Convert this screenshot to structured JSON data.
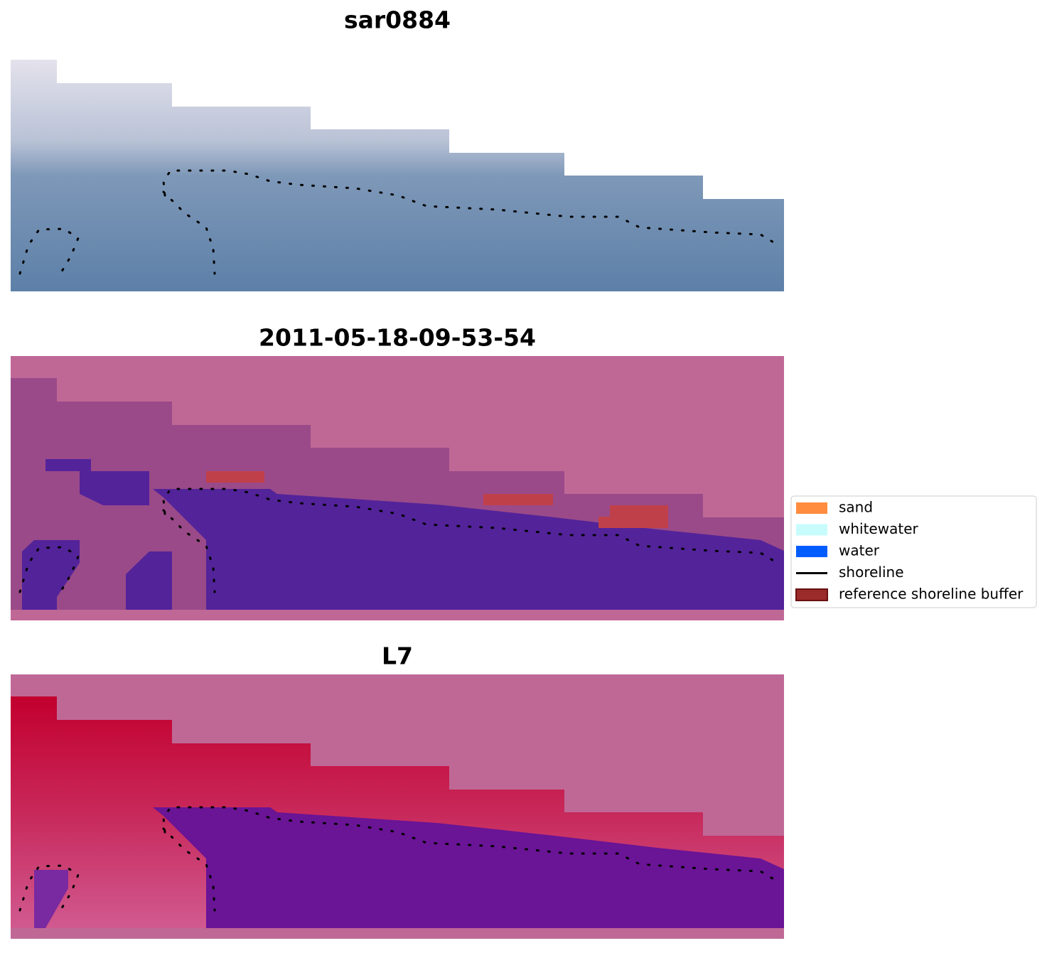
{
  "panels": [
    {
      "title": "sar0884"
    },
    {
      "title": "2011-05-18-09-53-54"
    },
    {
      "title": "L7"
    }
  ],
  "legend": {
    "items": [
      {
        "label": "sand",
        "color": "#ff8c3f",
        "kind": "patch"
      },
      {
        "label": "whitewater",
        "color": "#c8fcfc",
        "kind": "patch"
      },
      {
        "label": "water",
        "color": "#005cff",
        "kind": "patch"
      },
      {
        "label": "shoreline",
        "color": "#000000",
        "kind": "line"
      },
      {
        "label": "reference shoreline buffer",
        "color": "#9b2a2a",
        "kind": "patch"
      }
    ]
  }
}
